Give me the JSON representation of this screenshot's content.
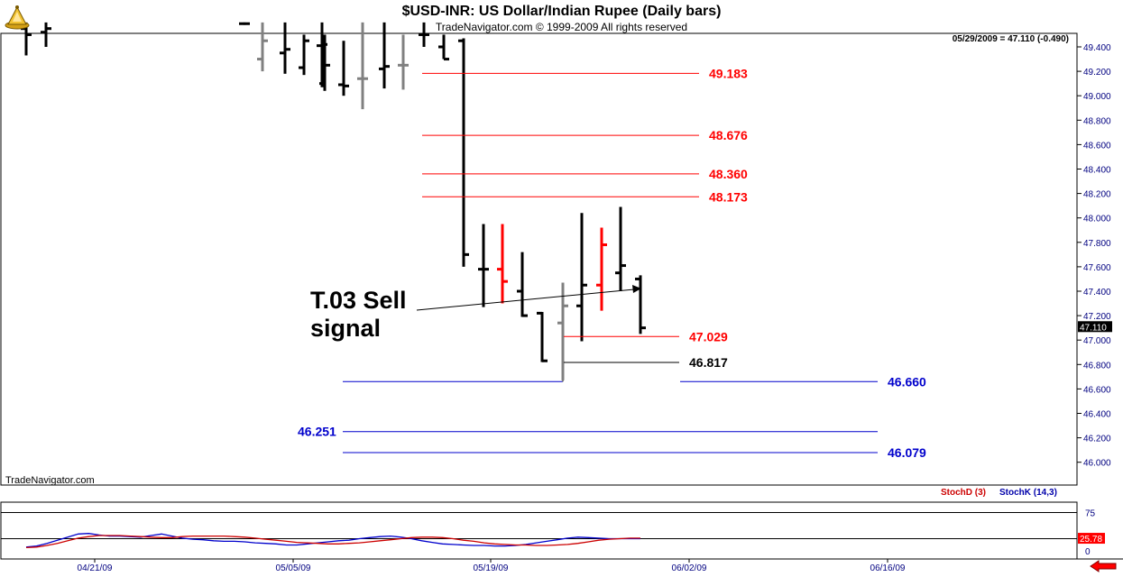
{
  "header": {
    "title": "$USD-INR:  US Dollar/Indian Rupee  (Daily bars)",
    "subtitle": "TradeNavigator.com © 1999-2009 All rights reserved"
  },
  "watermark": "TradeNavigator.com",
  "quote_line": "05/29/2009 = 47.110 (-0.490)",
  "last_price": "47.110",
  "annotation": {
    "line1": "T.03 Sell",
    "line2": "signal"
  },
  "colors": {
    "up_bar": "#000000",
    "red_bar": "#ff0000",
    "gray_bar": "#808080",
    "red_level": "#ff0000",
    "blue_level": "#0000cc",
    "axis_text": "#000080",
    "stoch_d": "#cc0000",
    "stoch_k": "#0000cc"
  },
  "chart_data": {
    "type": "ohlc",
    "title": "$USD-INR:  US Dollar/Indian Rupee  (Daily bars)",
    "price_axis": {
      "ylim": [
        45.86,
        49.6
      ],
      "ticks": [
        "49.400",
        "49.200",
        "49.000",
        "48.800",
        "48.600",
        "48.400",
        "48.200",
        "48.000",
        "47.800",
        "47.600",
        "47.400",
        "47.200",
        "47.000",
        "46.800",
        "46.600",
        "46.400",
        "46.200",
        "46.000"
      ]
    },
    "date_ticks": [
      "04/21/09",
      "05/05/09",
      "05/19/09",
      "06/02/09",
      "06/16/09"
    ],
    "bars": [
      {
        "d": "04/15",
        "h": 49.6,
        "l": 49.33,
        "o": 49.55,
        "c": 49.5,
        "t": "k"
      },
      {
        "d": "04/16",
        "h": 49.6,
        "l": 49.4,
        "o": 49.52,
        "c": 49.55,
        "t": "k"
      },
      {
        "d": "04/29",
        "h": 49.6,
        "l": 49.58,
        "o": 49.59,
        "c": 49.59,
        "t": "k"
      },
      {
        "d": "04/30",
        "h": 49.6,
        "l": 49.2,
        "o": 49.3,
        "c": 49.45,
        "t": "g"
      },
      {
        "d": "05/01",
        "h": 49.6,
        "l": 49.18,
        "o": 49.35,
        "c": 49.38,
        "t": "k"
      },
      {
        "d": "05/04",
        "h": 49.5,
        "l": 49.17,
        "o": 49.23,
        "c": 49.45,
        "t": "k"
      },
      {
        "d": "05/05",
        "h": 49.6,
        "l": 49.07,
        "o": 49.41,
        "c": 49.42,
        "t": "k"
      },
      {
        "d": "05/06",
        "h": 49.5,
        "l": 49.04,
        "o": 49.1,
        "c": 49.25,
        "t": "k"
      },
      {
        "d": "05/07",
        "h": 49.45,
        "l": 49.0,
        "o": 49.09,
        "c": 49.08,
        "t": "k"
      },
      {
        "d": "05/08",
        "h": 49.6,
        "l": 48.89,
        "o": 49.14,
        "c": 49.14,
        "t": "g"
      },
      {
        "d": "05/11",
        "h": 49.6,
        "l": 49.06,
        "o": 49.22,
        "c": 49.24,
        "t": "k"
      },
      {
        "d": "05/12",
        "h": 49.5,
        "l": 49.05,
        "o": 49.25,
        "c": 49.25,
        "t": "g"
      },
      {
        "d": "05/13",
        "h": 49.6,
        "l": 49.4,
        "o": 49.5,
        "c": 49.5,
        "t": "k"
      },
      {
        "d": "05/14",
        "h": 49.5,
        "l": 49.3,
        "o": 49.4,
        "c": 49.3,
        "t": "k"
      },
      {
        "d": "05/15",
        "h": 49.47,
        "l": 47.6,
        "o": 49.45,
        "c": 47.7,
        "t": "k"
      },
      {
        "d": "05/18",
        "h": 47.95,
        "l": 47.27,
        "o": 47.58,
        "c": 47.58,
        "t": "k"
      },
      {
        "d": "05/19",
        "h": 47.95,
        "l": 47.3,
        "o": 47.58,
        "c": 47.48,
        "t": "r"
      },
      {
        "d": "05/20",
        "h": 47.72,
        "l": 47.19,
        "o": 47.4,
        "c": 47.2,
        "t": "k"
      },
      {
        "d": "05/21",
        "h": 47.23,
        "l": 46.82,
        "o": 47.22,
        "c": 46.83,
        "t": "k"
      },
      {
        "d": "05/22",
        "h": 47.47,
        "l": 46.67,
        "o": 47.14,
        "c": 47.28,
        "t": "g"
      },
      {
        "d": "05/25",
        "h": 48.04,
        "l": 46.99,
        "o": 47.28,
        "c": 47.45,
        "t": "k"
      },
      {
        "d": "05/26",
        "h": 47.92,
        "l": 47.24,
        "o": 47.45,
        "c": 47.78,
        "t": "r"
      },
      {
        "d": "05/27",
        "h": 48.09,
        "l": 47.4,
        "o": 47.55,
        "c": 47.61,
        "t": "k"
      },
      {
        "d": "05/28",
        "h": 47.53,
        "l": 47.05,
        "o": 47.5,
        "c": 47.1,
        "t": "k"
      }
    ],
    "levels": [
      {
        "value": "49.183",
        "color": "red",
        "side": "right"
      },
      {
        "value": "48.676",
        "color": "red",
        "side": "right"
      },
      {
        "value": "48.360",
        "color": "red",
        "side": "right"
      },
      {
        "value": "48.173",
        "color": "red",
        "side": "right"
      },
      {
        "value": "47.029",
        "color": "red",
        "side": "right"
      },
      {
        "value": "46.817",
        "color": "black",
        "side": "right"
      },
      {
        "value": "46.660",
        "color": "blue",
        "side": "right"
      },
      {
        "value": "46.251",
        "color": "blue",
        "side": "left"
      },
      {
        "value": "46.079",
        "color": "blue",
        "side": "right"
      }
    ],
    "stochastic": {
      "legend": [
        "StochD (3)",
        "StochK (14,3)"
      ],
      "ylim": [
        0,
        100
      ],
      "ticks": [
        "75",
        "0"
      ],
      "last_value": "25.78",
      "stochD": [
        8,
        9,
        12,
        16,
        21,
        26,
        29,
        31,
        31,
        31,
        30,
        29,
        28,
        27,
        27,
        29,
        30,
        30,
        30,
        30,
        29,
        28,
        26,
        24,
        22,
        20,
        18,
        17,
        16,
        15,
        15,
        16,
        17,
        19,
        21,
        23,
        25,
        27,
        28,
        28,
        27,
        25,
        22,
        20,
        17,
        15,
        14,
        13,
        13,
        12,
        12,
        13,
        14,
        16,
        19,
        22,
        24,
        25,
        26,
        26
      ],
      "stochK": [
        9,
        11,
        16,
        22,
        28,
        34,
        35,
        32,
        30,
        30,
        29,
        28,
        31,
        34,
        30,
        26,
        24,
        23,
        21,
        20,
        20,
        19,
        17,
        16,
        15,
        13,
        13,
        15,
        17,
        19,
        21,
        22,
        25,
        27,
        29,
        30,
        28,
        25,
        21,
        18,
        15,
        14,
        13,
        12,
        12,
        11,
        11,
        12,
        14,
        17,
        20,
        23,
        26,
        28,
        27,
        26,
        25,
        25,
        25,
        25
      ]
    }
  }
}
